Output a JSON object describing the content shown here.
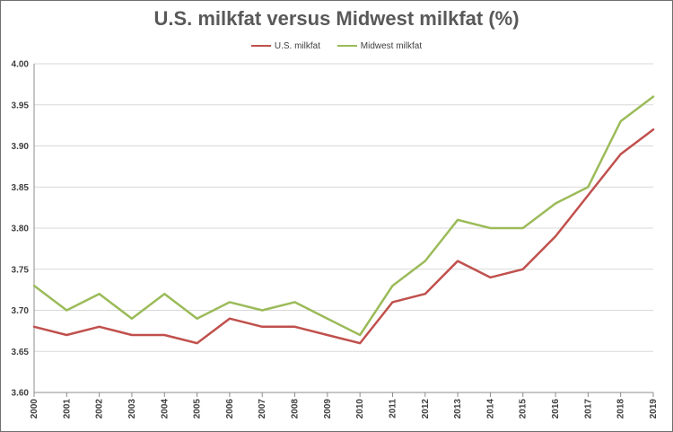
{
  "chart_data": {
    "type": "line",
    "title": "U.S. milkfat versus Midwest milkfat (%)",
    "xlabel": "",
    "ylabel": "",
    "x": [
      "2000",
      "2001",
      "2002",
      "2003",
      "2004",
      "2005",
      "2006",
      "2007",
      "2008",
      "2009",
      "2010",
      "2011",
      "2012",
      "2013",
      "2014",
      "2015",
      "2016",
      "2017",
      "2018",
      "2019"
    ],
    "ylim": [
      3.6,
      4.0
    ],
    "yticks": [
      "3.60",
      "3.65",
      "3.70",
      "3.75",
      "3.80",
      "3.85",
      "3.90",
      "3.95",
      "4.00"
    ],
    "grid": true,
    "legend_position": "top-center",
    "series": [
      {
        "name": "U.S. milkfat",
        "color": "#c0504d",
        "values": [
          3.68,
          3.67,
          3.68,
          3.67,
          3.67,
          3.66,
          3.69,
          3.68,
          3.68,
          3.67,
          3.66,
          3.71,
          3.72,
          3.76,
          3.74,
          3.75,
          3.79,
          3.84,
          3.89,
          3.92
        ]
      },
      {
        "name": "Midwest milkfat",
        "color": "#9bbb59",
        "values": [
          3.73,
          3.7,
          3.72,
          3.69,
          3.72,
          3.69,
          3.71,
          3.7,
          3.71,
          3.69,
          3.67,
          3.73,
          3.76,
          3.81,
          3.8,
          3.8,
          3.83,
          3.85,
          3.93,
          3.96
        ]
      }
    ]
  }
}
